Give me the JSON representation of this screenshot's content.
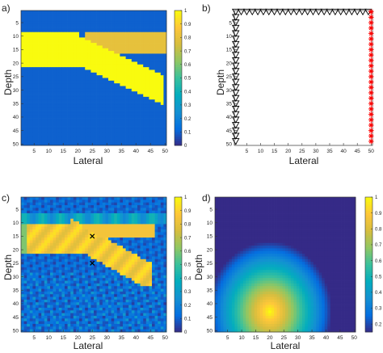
{
  "panels": [
    {
      "letter": "a)",
      "xlabel": "Lateral",
      "ylabel": "Depth"
    },
    {
      "letter": "b)",
      "xlabel": "Lateral",
      "ylabel": "Depth"
    },
    {
      "letter": "c)",
      "xlabel": "Lateral",
      "ylabel": "Depth"
    },
    {
      "letter": "d)",
      "xlabel": "Lateral",
      "ylabel": "Depth"
    }
  ],
  "chart_data": [
    {
      "type": "heatmap",
      "panel": "a)",
      "xlabel": "Lateral",
      "ylabel": "Depth",
      "xlim": [
        1,
        50
      ],
      "ylim": [
        50,
        1
      ],
      "x_ticks": [
        5,
        10,
        15,
        20,
        25,
        30,
        35,
        40,
        45,
        50
      ],
      "y_ticks": [
        5,
        10,
        15,
        20,
        25,
        30,
        35,
        40,
        45,
        50
      ],
      "colorbar": {
        "range": [
          0,
          1
        ],
        "ticks": [
          "0",
          "0.1",
          "0.2",
          "0.3",
          "0.4",
          "0.5",
          "0.6",
          "0.7",
          "0.8",
          "0.9",
          "1"
        ]
      },
      "colormap": "parula",
      "regions": [
        {
          "description": "upper layer",
          "x": [
            1,
            50
          ],
          "depth_top": 9,
          "depth_bottom": 21,
          "value": 1
        },
        {
          "description": "upper-right olive band",
          "x": [
            23,
            50
          ],
          "depth_top": 9,
          "depth_bottom": 16,
          "value": 0.8
        },
        {
          "description": "inclined layer",
          "x_start": 20,
          "x_end": 49,
          "depth_top_start": 10,
          "depth_top_end": 25,
          "thickness": 10,
          "value": 1
        }
      ],
      "background": 0.1
    },
    {
      "type": "scatter",
      "panel": "b)",
      "xlabel": "Lateral",
      "ylabel": "Depth",
      "xlim": [
        1,
        50
      ],
      "ylim": [
        50,
        1
      ],
      "x_ticks": [
        5,
        10,
        15,
        20,
        25,
        30,
        35,
        40,
        45,
        50
      ],
      "y_ticks": [
        5,
        10,
        15,
        20,
        25,
        30,
        35,
        40,
        45,
        50
      ],
      "series": [
        {
          "marker": "triangle-down",
          "color": "#000000",
          "points": "top row x=1..49 at depth 1, left column depth 1..49 at x=1"
        },
        {
          "marker": "asterisk",
          "color": "#ff0000",
          "points": "right column x=50, depth 1..50"
        }
      ]
    },
    {
      "type": "heatmap",
      "panel": "c)",
      "xlabel": "Lateral",
      "ylabel": "Depth",
      "xlim": [
        1,
        50
      ],
      "ylim": [
        50,
        1
      ],
      "x_ticks": [
        5,
        10,
        15,
        20,
        25,
        30,
        35,
        40,
        45,
        50
      ],
      "y_ticks": [
        5,
        10,
        15,
        20,
        25,
        30,
        35,
        40,
        45,
        50
      ],
      "colorbar": {
        "range": [
          0,
          1
        ],
        "ticks": [
          "0",
          "0.1",
          "0.2",
          "0.3",
          "0.4",
          "0.5",
          "0.6",
          "0.7",
          "0.8",
          "0.9",
          "1"
        ]
      },
      "colormap": "parula",
      "markers": [
        {
          "symbol": "x",
          "lateral": 25,
          "depth": 15
        },
        {
          "symbol": "x",
          "lateral": 25,
          "depth": 25
        }
      ]
    },
    {
      "type": "heatmap",
      "panel": "d)",
      "xlabel": "Lateral",
      "ylabel": "Depth",
      "xlim": [
        1,
        50
      ],
      "ylim": [
        50,
        1
      ],
      "x_ticks": [
        5,
        10,
        15,
        20,
        25,
        30,
        35,
        40,
        45,
        50
      ],
      "y_ticks": [
        5,
        10,
        15,
        20,
        25,
        30,
        35,
        40,
        45,
        50
      ],
      "colorbar": {
        "range": [
          0.15,
          1
        ],
        "ticks": [
          "0.2",
          "0.3",
          "0.4",
          "0.5",
          "0.6",
          "0.7",
          "0.8",
          "0.9",
          "1"
        ]
      },
      "colormap": "parula",
      "peak": {
        "lateral": 20,
        "depth": 43,
        "value": 1
      }
    }
  ]
}
